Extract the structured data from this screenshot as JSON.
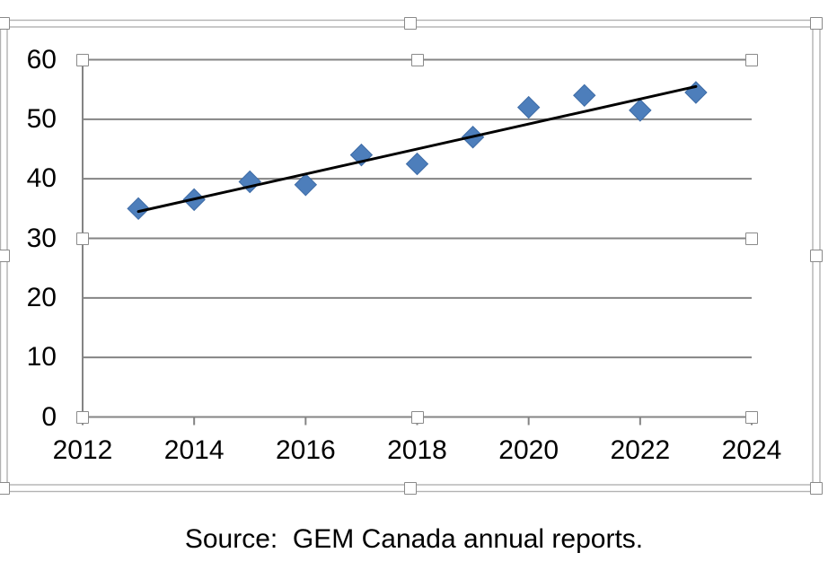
{
  "chart_data": {
    "type": "scatter",
    "title": "",
    "xlabel": "",
    "ylabel": "",
    "grid": true,
    "legend": false,
    "marker": "diamond",
    "marker_color": "#4d7ebb",
    "marker_edge_color": "#3d6ba6",
    "trendline_color": "#000000",
    "gridline_color": "#848484",
    "selection_frame_color": "#b2b2b2",
    "xlim": [
      2012,
      2024
    ],
    "ylim": [
      0,
      60
    ],
    "x_ticks": [
      {
        "value": 2012,
        "label": "2012"
      },
      {
        "value": 2014,
        "label": "2014"
      },
      {
        "value": 2016,
        "label": "2016"
      },
      {
        "value": 2018,
        "label": "2018"
      },
      {
        "value": 2020,
        "label": "2020"
      },
      {
        "value": 2022,
        "label": "2022"
      },
      {
        "value": 2024,
        "label": "2024"
      }
    ],
    "y_ticks": [
      {
        "value": 60,
        "label": "60"
      },
      {
        "value": 50,
        "label": "50"
      },
      {
        "value": 40,
        "label": "40"
      },
      {
        "value": 30,
        "label": "30"
      },
      {
        "value": 20,
        "label": "20"
      },
      {
        "value": 10,
        "label": "10"
      },
      {
        "value": 0,
        "label": "0"
      }
    ],
    "points": [
      {
        "year": 2013,
        "value": 35
      },
      {
        "year": 2014,
        "value": 36.5
      },
      {
        "year": 2015,
        "value": 39.5
      },
      {
        "year": 2016,
        "value": 39
      },
      {
        "year": 2017,
        "value": 44
      },
      {
        "year": 2018,
        "value": 42.5
      },
      {
        "year": 2019,
        "value": 47
      },
      {
        "year": 2020,
        "value": 52
      },
      {
        "year": 2021,
        "value": 54
      },
      {
        "year": 2022,
        "value": 51.5
      },
      {
        "year": 2023,
        "value": 54.5
      }
    ],
    "trendline": {
      "x_start": 2013,
      "y_start": 34.5,
      "x_end": 2023,
      "y_end": 55.5
    }
  },
  "selection": {
    "chart_selected": true,
    "plot_area_selected": true
  },
  "caption": {
    "text": "Source:  GEM Canada annual reports."
  }
}
